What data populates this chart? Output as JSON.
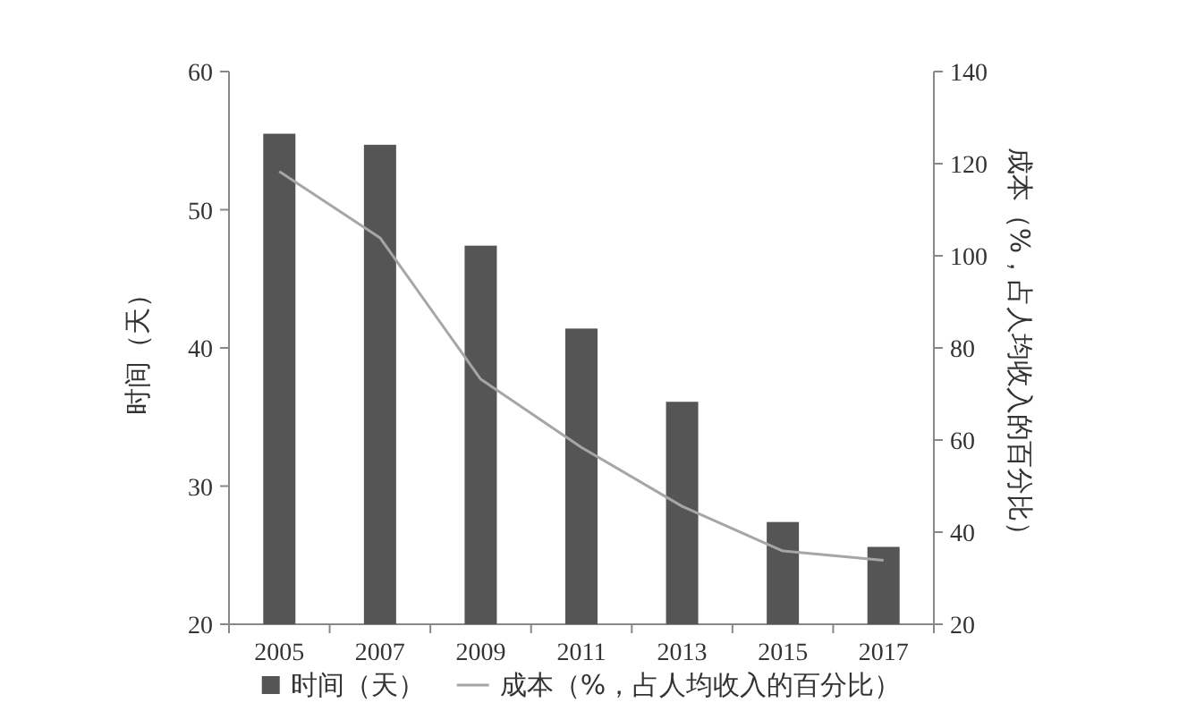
{
  "chart_data": {
    "type": "bar",
    "categories": [
      "2005",
      "2007",
      "2009",
      "2011",
      "2013",
      "2015",
      "2017"
    ],
    "series": [
      {
        "name": "时间（天）",
        "color": "#555555",
        "values": [
          55.5,
          54.7,
          47.4,
          41.4,
          36.1,
          27.4,
          25.6
        ]
      },
      {
        "name": "成本（%，占人均收入的百分比）",
        "type": "line",
        "axis": "y2",
        "color": "#a6a6a6",
        "values": [
          118.3,
          103.9,
          73.2,
          58.4,
          45.6,
          35.9,
          33.9
        ]
      }
    ],
    "ylabel": "时间（天）",
    "y2label": "成本（%，占人均收入的百分比）",
    "ylim": [
      20,
      60
    ],
    "yticks": [
      20,
      30,
      40,
      50,
      60
    ],
    "y2lim": [
      20,
      140
    ],
    "y2ticks": [
      20,
      40,
      60,
      80,
      100,
      120,
      140
    ],
    "legend": "bottom",
    "grid": false
  }
}
